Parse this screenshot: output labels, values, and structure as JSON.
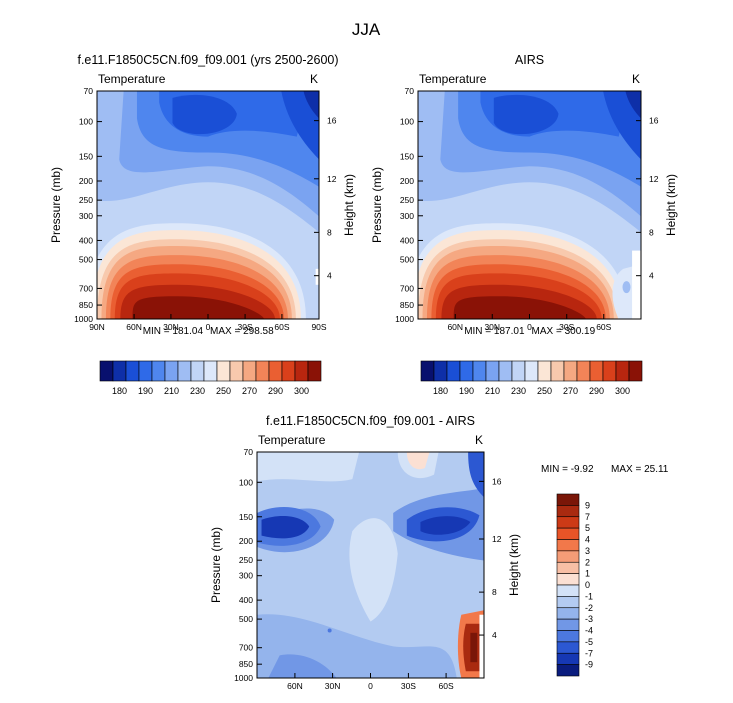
{
  "page": {
    "title": "JJA"
  },
  "chart_data": [
    {
      "type": "heatmap",
      "title": "f.e11.F1850C5CN.f09_f09.001 (yrs 2500-2600)",
      "corner_left": "Temperature",
      "corner_right": "K",
      "xlabel": "",
      "ylabel": "Pressure (mb)",
      "ylabel_right": "Height (km)",
      "x_ticks": [
        "90N",
        "60N",
        "30N",
        "0",
        "30S",
        "60S",
        "90S"
      ],
      "y_ticks": [
        "70",
        "100",
        "150",
        "200",
        "250",
        "300",
        "400",
        "500",
        "700",
        "850",
        "1000"
      ],
      "y_ticks_right": [
        "16",
        "12",
        "8",
        "4"
      ],
      "stats": {
        "min_label": "MIN = 181.04",
        "max_label": "MAX = 298.58",
        "min": 181.04,
        "max": 298.58
      },
      "colorbar": {
        "ticks": [
          "180",
          "190",
          "210",
          "230",
          "250",
          "270",
          "290",
          "300"
        ]
      }
    },
    {
      "type": "heatmap",
      "title": "AIRS",
      "corner_left": "Temperature",
      "corner_right": "K",
      "xlabel": "",
      "ylabel": "Pressure (mb)",
      "ylabel_right": "Height (km)",
      "x_ticks": [
        "60N",
        "30N",
        "0",
        "30S",
        "60S"
      ],
      "y_ticks": [
        "70",
        "100",
        "150",
        "200",
        "250",
        "300",
        "400",
        "500",
        "700",
        "850",
        "1000"
      ],
      "y_ticks_right": [
        "16",
        "12",
        "8",
        "4"
      ],
      "stats": {
        "min_label": "MIN = 187.01",
        "max_label": "MAX = 300.19",
        "min": 187.01,
        "max": 300.19
      },
      "colorbar": {
        "ticks": [
          "180",
          "190",
          "210",
          "230",
          "250",
          "270",
          "290",
          "300"
        ]
      }
    },
    {
      "type": "heatmap",
      "title": "f.e11.F1850C5CN.f09_f09.001 - AIRS",
      "corner_left": "Temperature",
      "corner_right": "K",
      "xlabel": "",
      "ylabel": "Pressure (mb)",
      "ylabel_right": "Height (km)",
      "x_ticks": [
        "60N",
        "30N",
        "0",
        "30S",
        "60S"
      ],
      "y_ticks": [
        "70",
        "100",
        "150",
        "200",
        "250",
        "300",
        "400",
        "500",
        "700",
        "850",
        "1000"
      ],
      "y_ticks_right": [
        "16",
        "12",
        "8",
        "4"
      ],
      "stats": {
        "min_label": "MIN =  -9.92",
        "max_label": "MAX =  25.11",
        "min": -9.92,
        "max": 25.11
      },
      "colorbar": {
        "ticks": [
          "9",
          "7",
          "5",
          "4",
          "3",
          "2",
          "1",
          "0",
          "-1",
          "-2",
          "-3",
          "-4",
          "-5",
          "-7",
          "-9"
        ]
      }
    }
  ],
  "colors": {
    "abs_palette": [
      "#08106e",
      "#0e2fa8",
      "#1a4fd6",
      "#2f6ae8",
      "#4f86ee",
      "#7aa3f1",
      "#9fbdf3",
      "#c1d5f6",
      "#dde8fa",
      "#fbe6d6",
      "#f8c9ad",
      "#f5a882",
      "#f28458",
      "#ea5f32",
      "#d9401b",
      "#b8260f",
      "#8a1206"
    ],
    "diff_palette": [
      "#7a1608",
      "#a92a10",
      "#cc3a16",
      "#e95427",
      "#f2784a",
      "#f59c77",
      "#f8bfa5",
      "#fbe0d3",
      "#d3e2f7",
      "#b3cbf1",
      "#94b4ec",
      "#7197e6",
      "#4c78df",
      "#2c58d2",
      "#1638b4",
      "#0a1c7e"
    ]
  }
}
